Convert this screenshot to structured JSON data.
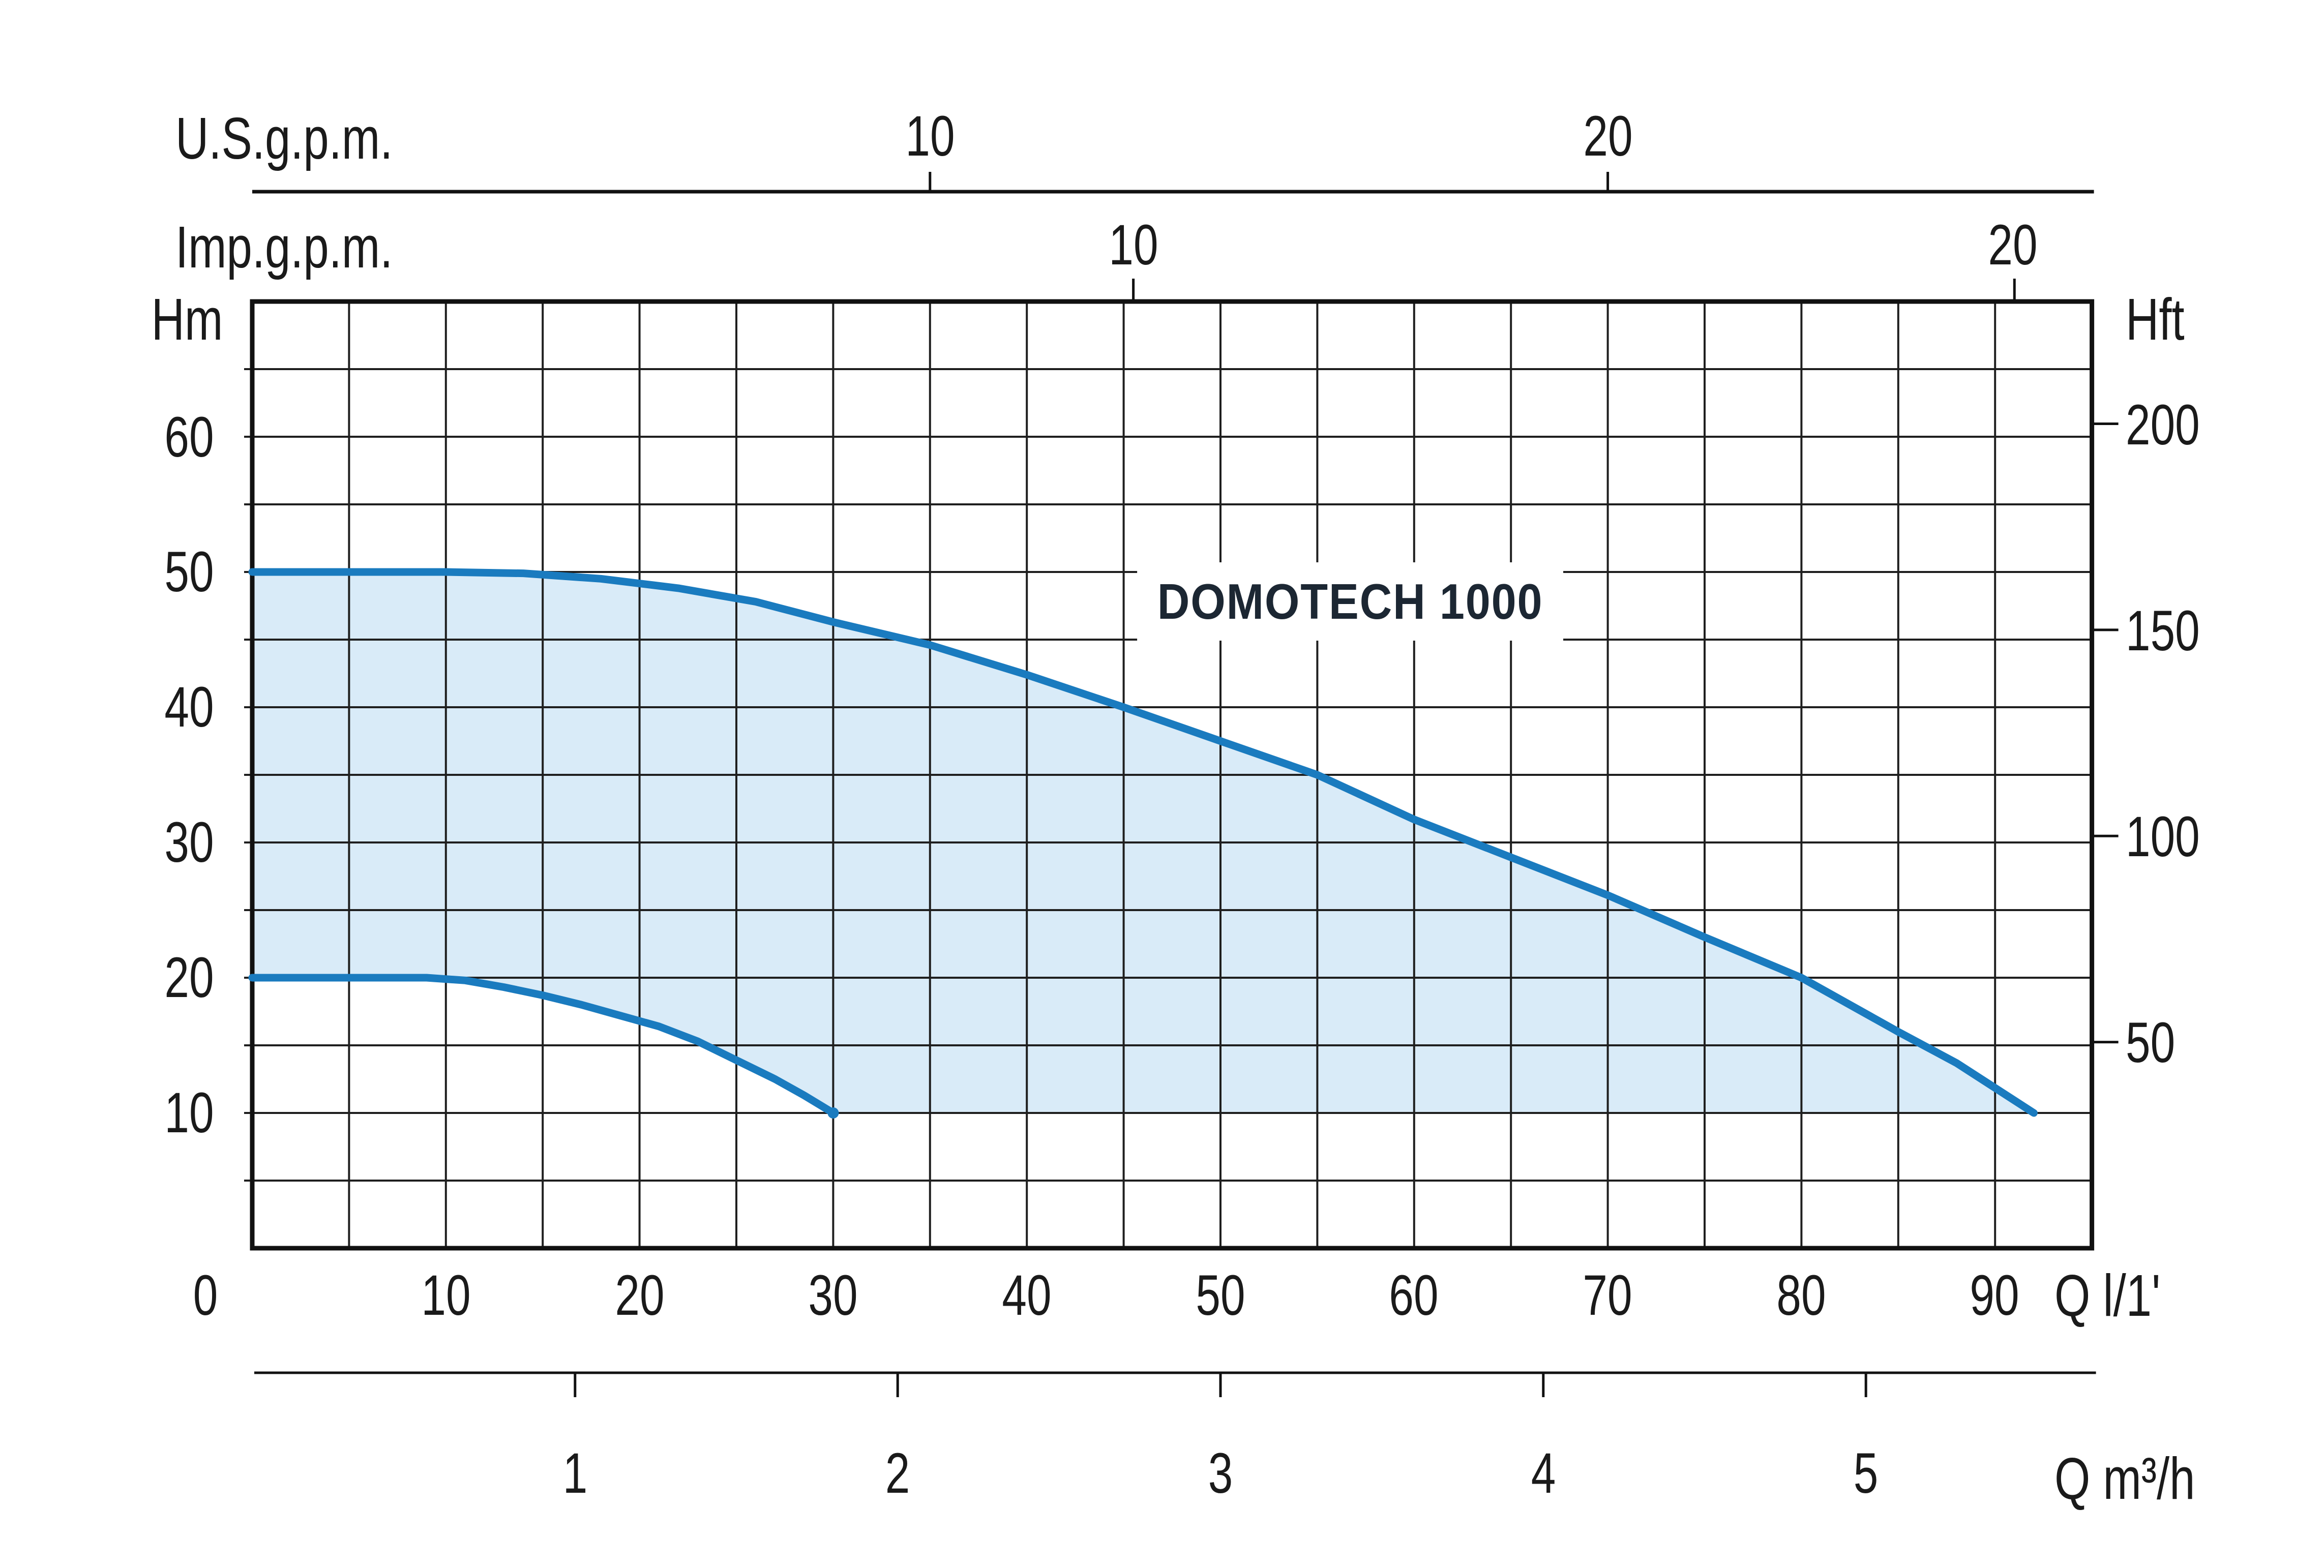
{
  "title": "DOMOTECH 1000",
  "axes": {
    "us_gpm": {
      "label": "U.S.g.p.m.",
      "ticks": [
        {
          "label": "10",
          "q_lmin": 35
        },
        {
          "label": "20",
          "q_lmin": 70
        }
      ]
    },
    "imp_gpm": {
      "label": "Imp.g.p.m.",
      "ticks": [
        {
          "label": "10",
          "q_lmin": 45.5
        },
        {
          "label": "20",
          "q_lmin": 91
        }
      ]
    },
    "head_m": {
      "label": "Hm",
      "ticks": [
        "60",
        "50",
        "40",
        "30",
        "20",
        "10"
      ]
    },
    "head_ft": {
      "label": "Hft",
      "ticks": [
        {
          "label": "200",
          "ft": 200
        },
        {
          "label": "150",
          "ft": 150
        },
        {
          "label": "100",
          "ft": 100
        },
        {
          "label": "50",
          "ft": 50
        }
      ]
    },
    "q_lmin": {
      "label": "Q l/1'",
      "zero_label": "0",
      "ticks": [
        "10",
        "20",
        "30",
        "40",
        "50",
        "60",
        "70",
        "80",
        "90"
      ]
    },
    "q_m3h": {
      "label": "Q m³/h",
      "ticks": [
        {
          "label": "1",
          "q_lmin": 16.67
        },
        {
          "label": "2",
          "q_lmin": 33.33
        },
        {
          "label": "3",
          "q_lmin": 50
        },
        {
          "label": "4",
          "q_lmin": 66.67
        },
        {
          "label": "5",
          "q_lmin": 83.33
        }
      ]
    }
  },
  "chart_data": {
    "type": "area",
    "title": "DOMOTECH 1000",
    "x_axis": {
      "label": "Q l/1'",
      "unit": "l/min",
      "min": 0,
      "max": 95,
      "grid_step": 5,
      "tick_values": [
        0,
        10,
        20,
        30,
        40,
        50,
        60,
        70,
        80,
        90
      ]
    },
    "y_axis": {
      "label": "Hm",
      "unit": "m",
      "min": 0,
      "max": 70,
      "grid_step": 5,
      "tick_values": [
        10,
        20,
        30,
        40,
        50,
        60
      ]
    },
    "secondary_axes": {
      "us_gpm_ticks_lmin": [
        35,
        70
      ],
      "imp_gpm_ticks_lmin": [
        45.5,
        91
      ],
      "hft_ticks_ft": [
        50,
        100,
        150,
        200
      ],
      "m3h_ticks_lmin": [
        16.67,
        33.33,
        50,
        66.67,
        83.33
      ]
    },
    "grid": true,
    "legend": "none",
    "series": [
      {
        "name": "max-impeller-curve",
        "points": [
          [
            0,
            50
          ],
          [
            6,
            50
          ],
          [
            10,
            50
          ],
          [
            14,
            49.9
          ],
          [
            18,
            49.5
          ],
          [
            22,
            48.8
          ],
          [
            26,
            47.8
          ],
          [
            30,
            46.3
          ],
          [
            35,
            44.6
          ],
          [
            40,
            42.4
          ],
          [
            45,
            40
          ],
          [
            50,
            37.5
          ],
          [
            55,
            35
          ],
          [
            60,
            31.7
          ],
          [
            65,
            28.9
          ],
          [
            70,
            26.1
          ],
          [
            75,
            23
          ],
          [
            80,
            20
          ],
          [
            85,
            16
          ],
          [
            88,
            13.7
          ],
          [
            92,
            10
          ]
        ]
      },
      {
        "name": "min-impeller-curve",
        "points": [
          [
            0,
            20
          ],
          [
            5,
            20
          ],
          [
            9,
            20
          ],
          [
            11,
            19.8
          ],
          [
            13,
            19.3
          ],
          [
            15,
            18.7
          ],
          [
            17,
            18
          ],
          [
            19,
            17.2
          ],
          [
            21,
            16.4
          ],
          [
            23,
            15.3
          ],
          [
            25,
            13.9
          ],
          [
            27,
            12.5
          ],
          [
            28.5,
            11.3
          ],
          [
            30,
            10
          ]
        ]
      }
    ],
    "fill_between": {
      "upper": "max-impeller-curve",
      "lower": "min-impeller-curve",
      "baseline_h_m": 10
    },
    "colors": {
      "curve": "#1a7bbf",
      "fill": "#d9ebf8",
      "grid": "#1f1f1f",
      "border": "#111111",
      "text": "#1a1a1a"
    }
  }
}
